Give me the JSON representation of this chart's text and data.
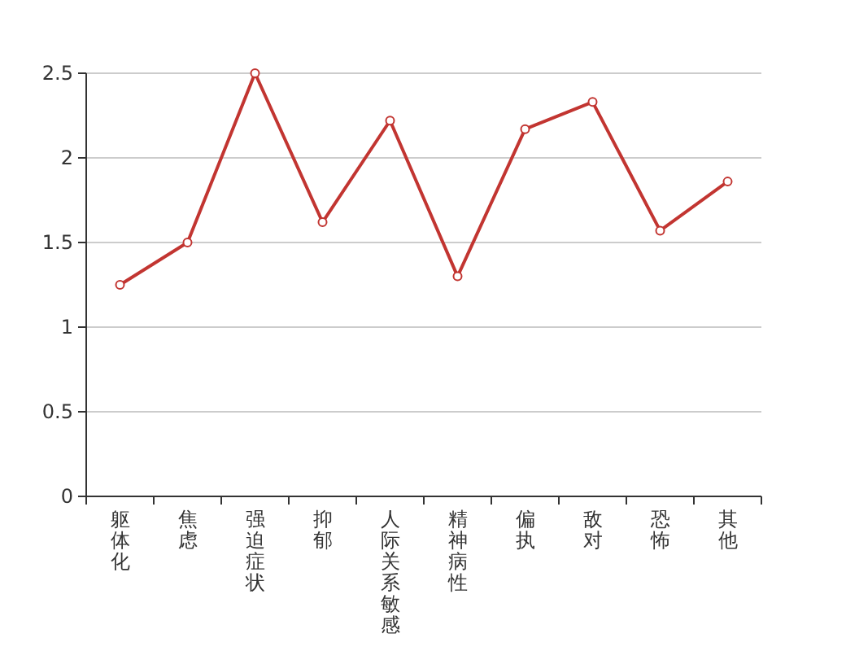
{
  "chart_data": {
    "type": "line",
    "categories": [
      "躯体化",
      "焦虑",
      "强迫症状",
      "抑郁",
      "人际关系敏感",
      "精神病性",
      "偏执",
      "敌对",
      "恐怖",
      "其他"
    ],
    "series": [
      {
        "color": "#c23531",
        "values": [
          1.25,
          1.5,
          2.5,
          1.62,
          2.22,
          1.3,
          2.17,
          2.33,
          1.57,
          1.86
        ]
      }
    ],
    "ylim": [
      0,
      2.5
    ],
    "yticks": [
      0,
      0.5,
      1,
      1.5,
      2,
      2.5
    ],
    "grid": "y",
    "marker": "circle",
    "line_style": "solid"
  }
}
